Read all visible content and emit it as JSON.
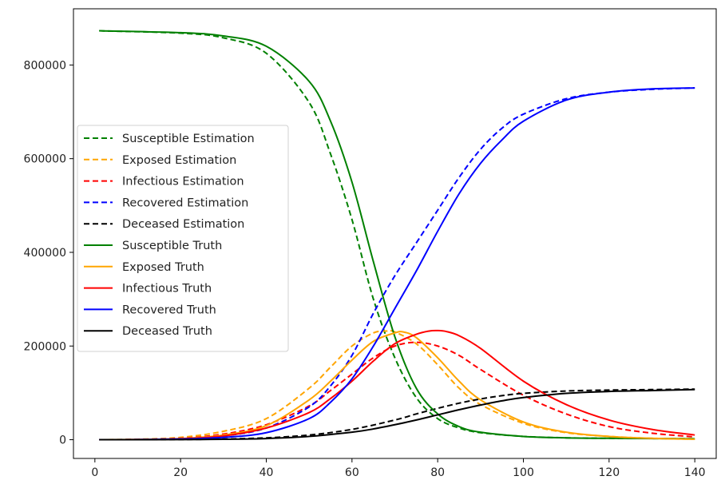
{
  "chart_data": {
    "type": "line",
    "title": "",
    "xlabel": "",
    "ylabel": "",
    "xlim": [
      -5,
      145
    ],
    "ylim": [
      -40000,
      920000
    ],
    "xticks": [
      0,
      20,
      40,
      60,
      80,
      100,
      120,
      140
    ],
    "yticks": [
      0,
      200000,
      400000,
      600000,
      800000
    ],
    "grid": false,
    "legend_position": "center-left",
    "series": [
      {
        "name": "Susceptible Estimation",
        "color": "#008000",
        "dash": true,
        "x": [
          1,
          20,
          30,
          40,
          50,
          55,
          60,
          65,
          70,
          75,
          80,
          85,
          90,
          100,
          110,
          120,
          130,
          140
        ],
        "y": [
          873000,
          868000,
          858000,
          825000,
          720000,
          610000,
          470000,
          300000,
          175000,
          90000,
          45000,
          25000,
          15000,
          7000,
          4000,
          3000,
          2500,
          2000
        ]
      },
      {
        "name": "Exposed Estimation",
        "color": "#ffa500",
        "dash": true,
        "x": [
          1,
          10,
          20,
          30,
          40,
          50,
          55,
          60,
          65,
          68,
          70,
          75,
          80,
          85,
          90,
          100,
          110,
          120,
          130,
          140
        ],
        "y": [
          0,
          1000,
          5000,
          18000,
          45000,
          110000,
          155000,
          200000,
          228000,
          232000,
          230000,
          205000,
          160000,
          110000,
          75000,
          35000,
          15000,
          7000,
          3000,
          1000
        ]
      },
      {
        "name": "Infectious Estimation",
        "color": "#ff0000",
        "dash": true,
        "x": [
          1,
          10,
          20,
          30,
          40,
          50,
          55,
          60,
          65,
          70,
          75,
          80,
          85,
          90,
          100,
          110,
          120,
          130,
          140
        ],
        "y": [
          0,
          500,
          3000,
          12000,
          32000,
          72000,
          105000,
          140000,
          175000,
          200000,
          208000,
          200000,
          180000,
          150000,
          95000,
          55000,
          28000,
          14000,
          6000
        ]
      },
      {
        "name": "Recovered Estimation",
        "color": "#0000ff",
        "dash": true,
        "x": [
          1,
          10,
          20,
          30,
          40,
          50,
          55,
          60,
          65,
          70,
          75,
          80,
          85,
          90,
          95,
          100,
          110,
          120,
          130,
          140
        ],
        "y": [
          0,
          500,
          2500,
          8000,
          25000,
          70000,
          115000,
          180000,
          270000,
          350000,
          420000,
          490000,
          560000,
          620000,
          665000,
          695000,
          728000,
          742000,
          748000,
          751000
        ]
      },
      {
        "name": "Deceased Estimation",
        "color": "#000000",
        "dash": true,
        "x": [
          1,
          20,
          30,
          40,
          50,
          60,
          70,
          75,
          80,
          85,
          90,
          95,
          100,
          110,
          120,
          130,
          140
        ],
        "y": [
          0,
          500,
          1500,
          4000,
          10000,
          22000,
          42000,
          55000,
          67000,
          78000,
          87000,
          94000,
          99000,
          104000,
          106000,
          107000,
          108000
        ]
      },
      {
        "name": "Susceptible Truth",
        "color": "#008000",
        "dash": false,
        "x": [
          1,
          20,
          30,
          40,
          50,
          55,
          60,
          65,
          70,
          75,
          80,
          85,
          90,
          100,
          110,
          120,
          130,
          140
        ],
        "y": [
          873000,
          869000,
          862000,
          840000,
          765000,
          680000,
          550000,
          380000,
          220000,
          110000,
          55000,
          28000,
          16000,
          7000,
          4000,
          3000,
          2500,
          2000
        ]
      },
      {
        "name": "Exposed Truth",
        "color": "#ffa500",
        "dash": false,
        "x": [
          1,
          10,
          20,
          30,
          40,
          50,
          55,
          60,
          65,
          70,
          72,
          75,
          80,
          85,
          90,
          100,
          110,
          120,
          130,
          140
        ],
        "y": [
          0,
          500,
          2500,
          10000,
          30000,
          85000,
          125000,
          170000,
          210000,
          228000,
          230000,
          218000,
          175000,
          125000,
          85000,
          38000,
          16000,
          7000,
          3000,
          1000
        ]
      },
      {
        "name": "Infectious Truth",
        "color": "#ff0000",
        "dash": false,
        "x": [
          1,
          10,
          20,
          30,
          40,
          50,
          55,
          60,
          65,
          70,
          75,
          78,
          80,
          82,
          85,
          90,
          100,
          110,
          120,
          130,
          140
        ],
        "y": [
          0,
          300,
          2000,
          8000,
          25000,
          58000,
          88000,
          125000,
          168000,
          205000,
          225000,
          232000,
          233000,
          231000,
          222000,
          195000,
          125000,
          75000,
          42000,
          22000,
          10000
        ]
      },
      {
        "name": "Recovered Truth",
        "color": "#0000ff",
        "dash": false,
        "x": [
          1,
          10,
          20,
          30,
          40,
          50,
          55,
          60,
          65,
          70,
          75,
          80,
          85,
          90,
          95,
          100,
          110,
          120,
          130,
          140
        ],
        "y": [
          0,
          300,
          1500,
          5000,
          15000,
          45000,
          80000,
          130000,
          200000,
          280000,
          360000,
          445000,
          525000,
          590000,
          640000,
          680000,
          725000,
          742000,
          749000,
          751000
        ]
      },
      {
        "name": "Deceased Truth",
        "color": "#000000",
        "dash": false,
        "x": [
          1,
          20,
          30,
          40,
          50,
          60,
          65,
          70,
          75,
          80,
          85,
          90,
          95,
          100,
          110,
          120,
          130,
          140
        ],
        "y": [
          0,
          300,
          1000,
          2500,
          7000,
          16000,
          23000,
          32000,
          42000,
          53000,
          64000,
          74000,
          83000,
          90000,
          99000,
          103000,
          105000,
          107000
        ]
      }
    ]
  }
}
